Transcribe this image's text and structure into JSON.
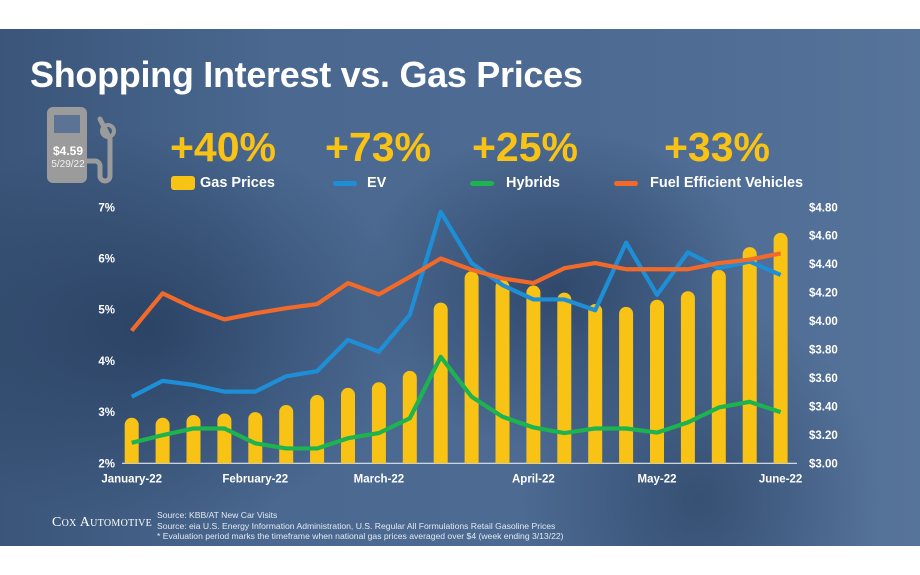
{
  "title": "Shopping Interest vs. Gas Prices",
  "pump": {
    "price": "$4.59",
    "date": "5/29/22"
  },
  "stats": [
    {
      "value": "+40%",
      "label": "Gas Prices",
      "color": "#f9c316",
      "kind": "bar"
    },
    {
      "value": "+73%",
      "label": "EV",
      "color": "#1e8fd6",
      "kind": "line"
    },
    {
      "value": "+25%",
      "label": "Hybrids",
      "color": "#1db34f",
      "kind": "line"
    },
    {
      "value": "+33%",
      "label": "Fuel Efficient Vehicles",
      "color": "#f26a2a",
      "kind": "line"
    }
  ],
  "footer": {
    "logo": "Cox Automotive",
    "notes": [
      "Source:  KBB/AT New Car Visits",
      "Source:  eia U.S. Energy Information Administration, U.S. Regular All Formulations Retail Gasoline Prices",
      "* Evaluation period marks the timeframe when national gas prices averaged over $4 (week ending 3/13/22)"
    ]
  },
  "chart_data": {
    "type": "bar+line",
    "x_tick_labels": [
      {
        "label": "January-22",
        "index": 0
      },
      {
        "label": "February-22",
        "index": 4
      },
      {
        "label": "March-22",
        "index": 8
      },
      {
        "label": "April-22",
        "index": 13
      },
      {
        "label": "May-22",
        "index": 17
      },
      {
        "label": "June-22",
        "index": 21
      }
    ],
    "y_left": {
      "lim": [
        2,
        7
      ],
      "ticks": [
        "2%",
        "3%",
        "4%",
        "5%",
        "6%",
        "7%"
      ]
    },
    "y_right": {
      "lim": [
        3.0,
        4.8
      ],
      "ticks": [
        "$3.00",
        "$3.20",
        "$3.40",
        "$3.60",
        "$3.80",
        "$4.00",
        "$4.20",
        "$4.40",
        "$4.60",
        "$4.80"
      ]
    },
    "grid": false,
    "legend": "top",
    "series": [
      {
        "name": "Gas Prices",
        "type": "bar",
        "axis": "right",
        "color": "#f9c316",
        "values": [
          3.32,
          3.32,
          3.34,
          3.35,
          3.36,
          3.41,
          3.48,
          3.53,
          3.57,
          3.65,
          4.13,
          4.35,
          4.29,
          4.25,
          4.2,
          4.12,
          4.1,
          4.15,
          4.21,
          4.36,
          4.52,
          4.62
        ]
      },
      {
        "name": "EV",
        "type": "line",
        "axis": "left",
        "color": "#1e8fd6",
        "values": [
          3.3,
          3.61,
          3.53,
          3.4,
          3.4,
          3.7,
          3.8,
          4.41,
          4.18,
          4.9,
          6.91,
          5.91,
          5.48,
          5.2,
          5.2,
          4.99,
          6.31,
          5.29,
          6.12,
          5.81,
          5.94,
          5.68
        ]
      },
      {
        "name": "Hybrids",
        "type": "line",
        "axis": "left",
        "color": "#1db34f",
        "values": [
          2.4,
          2.55,
          2.68,
          2.68,
          2.39,
          2.29,
          2.29,
          2.49,
          2.59,
          2.88,
          4.08,
          3.3,
          2.91,
          2.7,
          2.59,
          2.68,
          2.68,
          2.6,
          2.8,
          3.09,
          3.2,
          3.0
        ]
      },
      {
        "name": "Fuel Efficient Vehicles",
        "type": "line",
        "axis": "left",
        "color": "#f26a2a",
        "values": [
          4.59,
          5.32,
          5.03,
          4.81,
          4.93,
          5.03,
          5.11,
          5.52,
          5.3,
          5.64,
          6.0,
          5.78,
          5.61,
          5.52,
          5.81,
          5.91,
          5.79,
          5.79,
          5.79,
          5.91,
          5.98,
          6.1
        ]
      }
    ]
  }
}
